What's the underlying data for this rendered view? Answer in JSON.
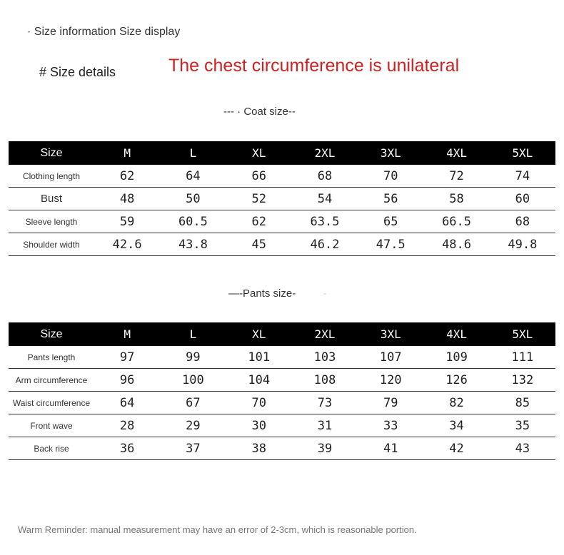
{
  "header": {
    "size_info": "· Size information Size display",
    "size_details": "# Size details",
    "note": "The chest circumference is unilateral"
  },
  "coat": {
    "title": "--- · Coat size--",
    "columns": [
      "Size",
      "M",
      "L",
      "XL",
      "2XL",
      "3XL",
      "4XL",
      "5XL"
    ],
    "rows": [
      {
        "label": "Clothing length",
        "values": [
          "62",
          "64",
          "66",
          "68",
          "70",
          "72",
          "74"
        ]
      },
      {
        "label": "Bust",
        "values": [
          "48",
          "50",
          "52",
          "54",
          "56",
          "58",
          "60"
        ]
      },
      {
        "label": "Sleeve length",
        "values": [
          "59",
          "60.5",
          "62",
          "63.5",
          "65",
          "66.5",
          "68"
        ]
      },
      {
        "label": "Shoulder width",
        "values": [
          "42.6",
          "43.8",
          "45",
          "46.2",
          "47.5",
          "48.6",
          "49.8"
        ]
      }
    ]
  },
  "pants": {
    "title": "—-Pants size-",
    "trailing": "-",
    "columns": [
      "Size",
      "M",
      "L",
      "XL",
      "2XL",
      "3XL",
      "4XL",
      "5XL"
    ],
    "rows": [
      {
        "label": "Pants length",
        "values": [
          "97",
          "99",
          "101",
          "103",
          "107",
          "109",
          "111"
        ]
      },
      {
        "label": "Arm circumference",
        "values": [
          "96",
          "100",
          "104",
          "108",
          "120",
          "126",
          "132"
        ]
      },
      {
        "label": "Waist circumference",
        "values": [
          "64",
          "67",
          "70",
          "73",
          "79",
          "82",
          "85"
        ]
      },
      {
        "label": "Front wave",
        "values": [
          "28",
          "29",
          "30",
          "31",
          "33",
          "34",
          "35"
        ]
      },
      {
        "label": "Back rise",
        "values": [
          "36",
          "37",
          "38",
          "39",
          "41",
          "42",
          "43"
        ]
      }
    ]
  },
  "footer": {
    "reminder": "Warm Reminder: manual measurement may have an error of 2-3cm, which is reasonable portion."
  }
}
